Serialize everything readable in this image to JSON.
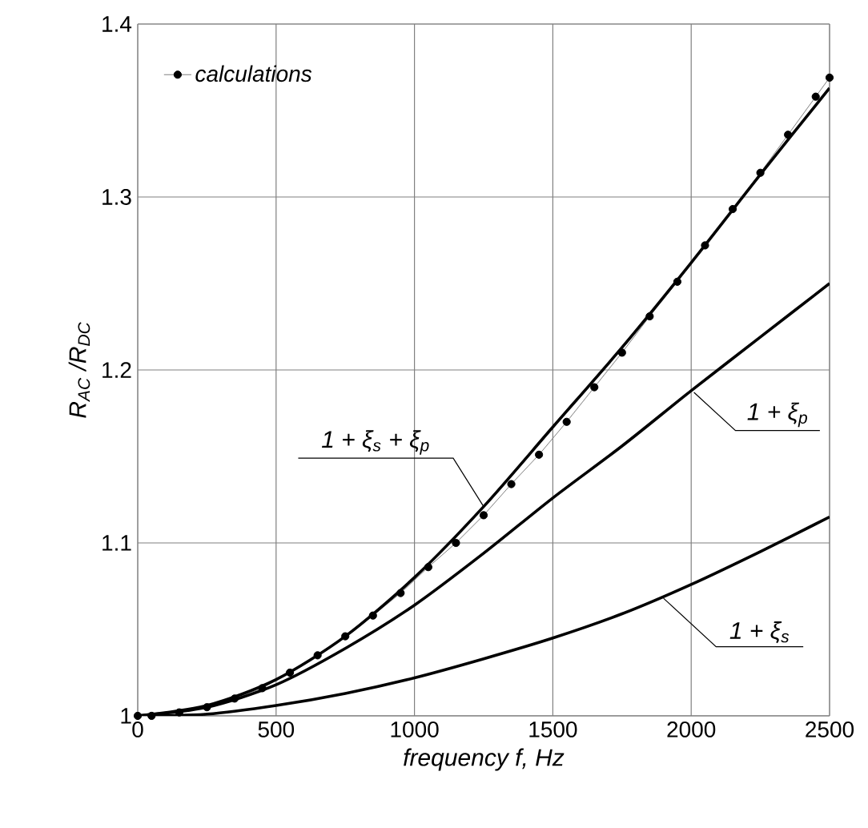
{
  "chart_data": {
    "type": "line",
    "xlabel": "frequency f, Hz",
    "ylabel": "R$_{AC}$ /R$_{DC}$",
    "xlim": [
      0,
      2500
    ],
    "xticks": [
      0,
      500,
      1000,
      1500,
      2000,
      2500
    ],
    "ylim": [
      1,
      1.4
    ],
    "yticks": [
      1,
      1.1,
      1.2,
      1.3,
      1.4
    ],
    "grid": true,
    "legend": "top left",
    "series": [
      {
        "name": "calculations",
        "color": "#000000",
        "marker": "circle",
        "x": [
          0,
          50,
          150,
          250,
          350,
          450,
          550,
          650,
          750,
          850,
          950,
          1050,
          1150,
          1250,
          1350,
          1450,
          1550,
          1650,
          1750,
          1850,
          1950,
          2050,
          2150,
          2250,
          2350,
          2450,
          2500
        ],
        "values": [
          1.0,
          1.0,
          1.002,
          1.005,
          1.01,
          1.016,
          1.025,
          1.035,
          1.046,
          1.058,
          1.071,
          1.086,
          1.1,
          1.116,
          1.134,
          1.151,
          1.17,
          1.19,
          1.21,
          1.231,
          1.251,
          1.272,
          1.293,
          1.314,
          1.336,
          1.358,
          1.369
        ]
      },
      {
        "color": "#000000",
        "marker": "none",
        "x": [
          0,
          250,
          500,
          750,
          1000,
          1250,
          1500,
          1750,
          2000,
          2250,
          2500
        ],
        "values": [
          1.0,
          1.006,
          1.021,
          1.046,
          1.08,
          1.121,
          1.167,
          1.213,
          1.262,
          1.313,
          1.363
        ]
      },
      {
        "color": "#000000",
        "marker": "none",
        "x": [
          0,
          250,
          500,
          750,
          1000,
          1250,
          1500,
          1750,
          2000,
          2250,
          2500
        ],
        "values": [
          1.0,
          1.005,
          1.018,
          1.039,
          1.064,
          1.094,
          1.126,
          1.156,
          1.188,
          1.219,
          1.25
        ]
      },
      {
        "color": "#000000",
        "marker": "none",
        "x": [
          0,
          250,
          500,
          750,
          1000,
          1250,
          1500,
          1750,
          2000,
          2250,
          2500
        ],
        "values": [
          1.0,
          1.001,
          1.006,
          1.013,
          1.022,
          1.033,
          1.045,
          1.059,
          1.076,
          1.095,
          1.115
        ]
      }
    ],
    "annotations": [
      {
        "text": "1 + ξ$_{s}$ + ξ$_{p}$",
        "x": 1250,
        "y": 1.121
      },
      {
        "text": "1 + ξ$_{p}$",
        "x": 2010,
        "y": 1.187
      },
      {
        "text": "1 + ξ$_{s}$",
        "x": 1900,
        "y": 1.068
      }
    ]
  }
}
